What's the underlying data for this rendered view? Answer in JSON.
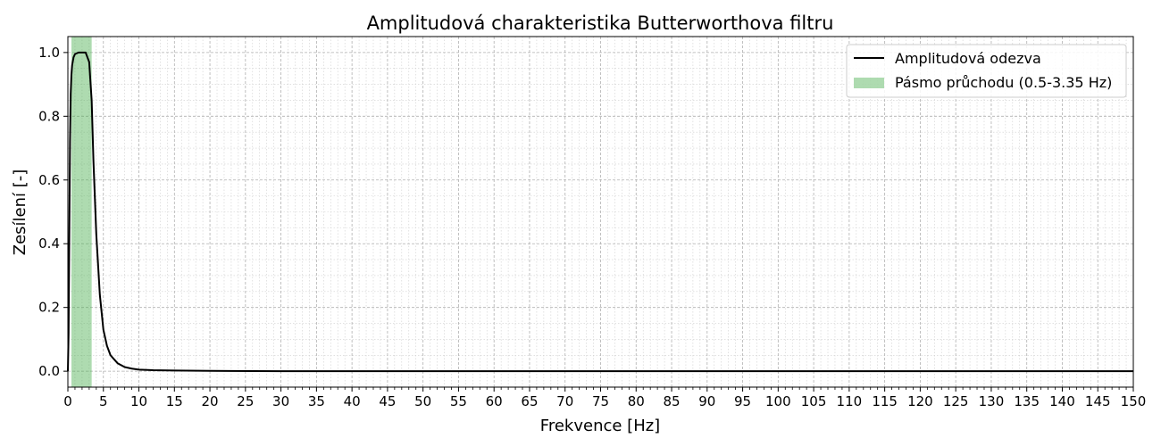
{
  "chart_data": {
    "type": "line",
    "title": "Amplitudová charakteristika Butterworthova filtru",
    "xlabel": "Frekvence [Hz]",
    "ylabel": "Zesílení [-]",
    "xlim": [
      0,
      150
    ],
    "ylim": [
      -0.05,
      1.05
    ],
    "x_major_ticks": [
      0,
      5,
      10,
      15,
      20,
      25,
      30,
      35,
      40,
      45,
      50,
      55,
      60,
      65,
      70,
      75,
      80,
      85,
      90,
      95,
      100,
      105,
      110,
      115,
      120,
      125,
      130,
      135,
      140,
      145,
      150
    ],
    "x_tick_labels": [
      "0",
      "5",
      "10",
      "15",
      "20",
      "25",
      "30",
      "35",
      "40",
      "45",
      "50",
      "55",
      "60",
      "65",
      "70",
      "75",
      "80",
      "85",
      "90",
      "95",
      "100",
      "105",
      "110",
      "115",
      "120",
      "125",
      "130",
      "135",
      "140",
      "145",
      "150"
    ],
    "x_minor_step": 1,
    "y_major_ticks": [
      0.0,
      0.2,
      0.4,
      0.6,
      0.8,
      1.0
    ],
    "y_tick_labels": [
      "0.0",
      "0.2",
      "0.4",
      "0.6",
      "0.8",
      "1.0"
    ],
    "y_minor_step": 0.05,
    "grid": true,
    "legend_position": "upper right",
    "series": [
      {
        "name": "Amplitudová odezva",
        "color": "#000000",
        "x": [
          0,
          0.1,
          0.2,
          0.3,
          0.4,
          0.5,
          0.6,
          0.8,
          1.0,
          1.5,
          2.0,
          2.5,
          3.0,
          3.35,
          3.6,
          4.0,
          4.5,
          5.0,
          5.5,
          6.0,
          7.0,
          8.0,
          9.0,
          10.0,
          12.0,
          15.0,
          20.0,
          30.0,
          50.0,
          100.0,
          150.0
        ],
        "y": [
          0.0,
          0.12,
          0.42,
          0.72,
          0.87,
          0.93,
          0.96,
          0.985,
          0.995,
          1.0,
          1.0,
          1.0,
          0.97,
          0.85,
          0.66,
          0.43,
          0.24,
          0.13,
          0.08,
          0.05,
          0.025,
          0.013,
          0.008,
          0.005,
          0.003,
          0.002,
          0.001,
          0.0,
          0.0,
          0.0,
          0.0
        ]
      }
    ],
    "bands": [
      {
        "name": "Pásmo průchodu (0.5-3.35 Hz)",
        "x_start": 0.5,
        "x_end": 3.35,
        "color": "#4caf50",
        "opacity": 0.45
      }
    ]
  }
}
